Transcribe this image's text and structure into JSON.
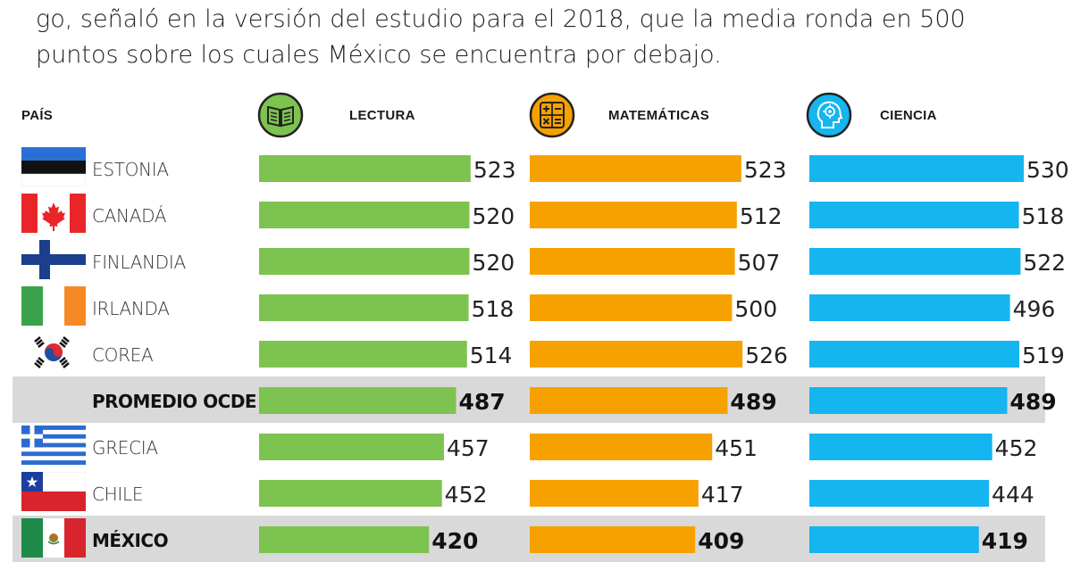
{
  "intro": {
    "line1": "go, señaló en la versión del estudio para el 2018, que la media ronda en 500",
    "line2": "puntos sobre los cuales México se encuentra por debajo."
  },
  "headers": {
    "country": "PAÍS",
    "reading": "LECTURA",
    "math": "MATEMÁTICAS",
    "science": "CIENCIA"
  },
  "icons": {
    "reading": "open-book-icon",
    "math": "calculator-icon",
    "science": "science-head-icon"
  },
  "colors": {
    "reading": "#7dc34f",
    "math": "#f7a100",
    "science": "#15b5f0",
    "highlight_band": "#d9d9d9"
  },
  "chart_data": {
    "type": "bar",
    "orientation": "horizontal",
    "categories": [
      "ESTONIA",
      "CANADÁ",
      "FINLANDIA",
      "IRLANDA",
      "COREA",
      "PROMEDIO OCDE",
      "GRECIA",
      "CHILE",
      "MÉXICO"
    ],
    "highlighted": [
      "PROMEDIO OCDE",
      "MÉXICO"
    ],
    "series": [
      {
        "name": "LECTURA",
        "values": [
          523,
          520,
          520,
          518,
          514,
          487,
          457,
          452,
          420
        ]
      },
      {
        "name": "MATEMÁTICAS",
        "values": [
          523,
          512,
          507,
          500,
          526,
          489,
          451,
          417,
          409
        ]
      },
      {
        "name": "CIENCIA",
        "values": [
          530,
          518,
          522,
          496,
          519,
          489,
          452,
          444,
          419
        ]
      }
    ],
    "xlabel": "",
    "ylabel": "PAÍS"
  }
}
